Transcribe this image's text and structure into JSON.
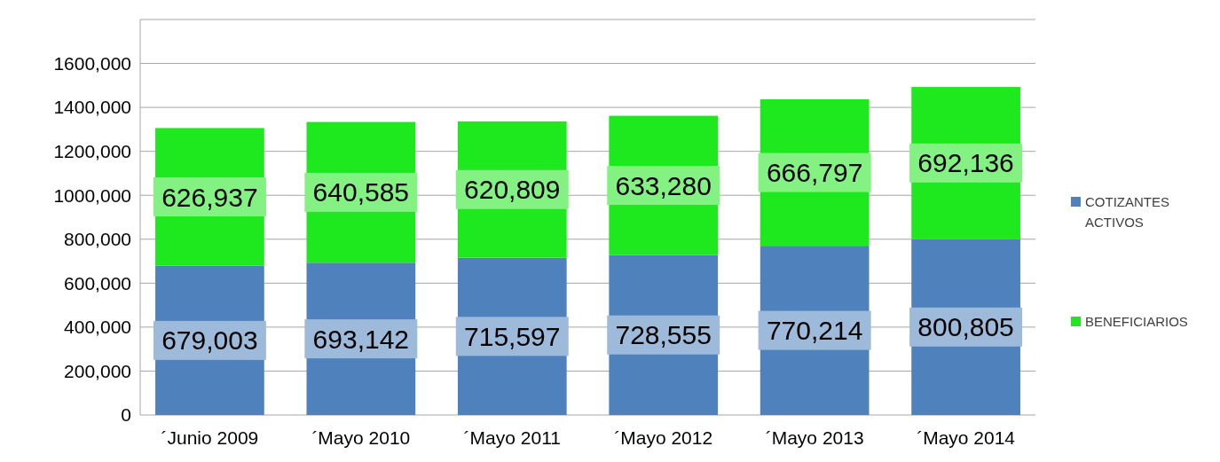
{
  "chart_data": {
    "type": "bar",
    "stacked": true,
    "categories": [
      "´Junio 2009",
      "´Mayo 2010",
      "´Mayo 2011",
      "´Mayo 2012",
      "´Mayo 2013",
      "´Mayo 2014"
    ],
    "series": [
      {
        "name": "COTIZANTES ACTIVOS",
        "color": "#4f81bd",
        "values": [
          679003,
          693142,
          715597,
          728555,
          770214,
          800805
        ],
        "value_labels": [
          "679,003",
          "693,142",
          "715,597",
          "728,555",
          "770,214",
          "800,805"
        ]
      },
      {
        "name": "BENEFICIARIOS",
        "color": "#1ee81e",
        "values": [
          626937,
          640585,
          620809,
          633280,
          666797,
          692136
        ],
        "value_labels": [
          "626,937",
          "640,585",
          "620,809",
          "633,280",
          "666,797",
          "692,136"
        ]
      }
    ],
    "ylim": [
      0,
      1800000
    ],
    "yticks": [
      0,
      {
        "value": 200000,
        "label": "200,000"
      },
      {
        "value": 400000,
        "label": "400,000"
      },
      {
        "value": 600000,
        "label": "600,000"
      },
      {
        "value": 800000,
        "label": "800,000"
      },
      {
        "value": 1000000,
        "label": "1000,000"
      },
      {
        "value": 1200000,
        "label": "1200,000"
      },
      {
        "value": 1400000,
        "label": "1400,000"
      },
      {
        "value": 1600000,
        "label": "1600,000"
      },
      {
        "value": 1800000,
        "label": null
      }
    ],
    "grid": "y",
    "legend": "right"
  }
}
